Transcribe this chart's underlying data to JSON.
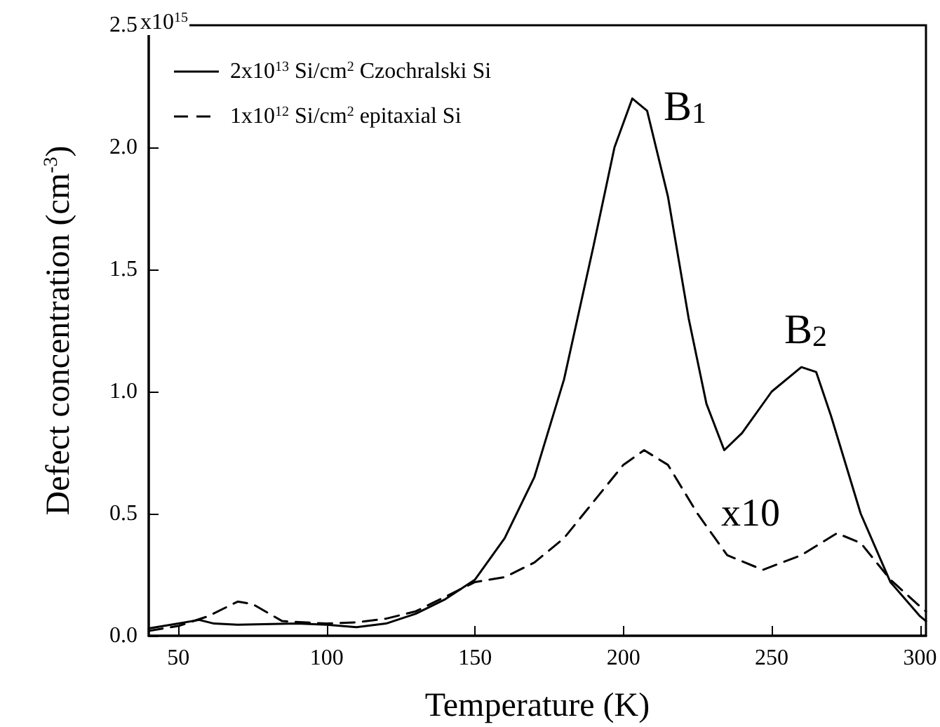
{
  "chart_data": {
    "type": "line",
    "xlabel": "Temperature (K)",
    "ylabel": "Defect concentration (cm$^{-3}$)",
    "xlim": [
      40,
      302
    ],
    "xticks": [
      50,
      100,
      150,
      200,
      250,
      300
    ],
    "ylim": [
      0,
      2.5
    ],
    "yticks": [
      {
        "value": 0,
        "label": "0.0"
      },
      0.5,
      {
        "value": 1,
        "label": "1.0"
      },
      1.5,
      {
        "value": 2,
        "label": "2.0"
      },
      2.5
    ],
    "grid": false,
    "legend": "top left",
    "marker": "none",
    "annotations": [
      "B$_{1}$",
      "B$_{2}$",
      "x10",
      "x10$^{15}$"
    ],
    "series": [
      {
        "name": "2x10$^{13}$ Si/cm$^{2}$ Czochralski Si",
        "color": "#000000",
        "line_style": "solid",
        "x": [
          40,
          50,
          57,
          62,
          70,
          90,
          100,
          110,
          120,
          130,
          140,
          150,
          160,
          170,
          180,
          190,
          197,
          203,
          208,
          215,
          222,
          228,
          234,
          240,
          250,
          260,
          265,
          270,
          280,
          290,
          300,
          302
        ],
        "values": [
          0.03,
          0.05,
          0.065,
          0.05,
          0.045,
          0.05,
          0.045,
          0.035,
          0.05,
          0.09,
          0.15,
          0.23,
          0.4,
          0.65,
          1.05,
          1.6,
          2.0,
          2.2,
          2.15,
          1.8,
          1.3,
          0.95,
          0.76,
          0.83,
          1.0,
          1.1,
          1.08,
          0.9,
          0.5,
          0.22,
          0.08,
          0.06
        ]
      },
      {
        "name": "1x10$^{12}$ Si/cm$^{2}$ epitaxial Si",
        "color": "#000000",
        "line_style": "dashed",
        "x": [
          40,
          50,
          60,
          70,
          75,
          85,
          100,
          110,
          120,
          130,
          140,
          150,
          160,
          170,
          180,
          190,
          200,
          207,
          215,
          225,
          235,
          247,
          260,
          272,
          280,
          290,
          300,
          302
        ],
        "values": [
          0.02,
          0.04,
          0.08,
          0.14,
          0.13,
          0.06,
          0.05,
          0.055,
          0.07,
          0.1,
          0.16,
          0.22,
          0.24,
          0.3,
          0.4,
          0.55,
          0.7,
          0.76,
          0.7,
          0.5,
          0.33,
          0.27,
          0.33,
          0.42,
          0.38,
          0.23,
          0.12,
          0.1
        ]
      }
    ]
  }
}
